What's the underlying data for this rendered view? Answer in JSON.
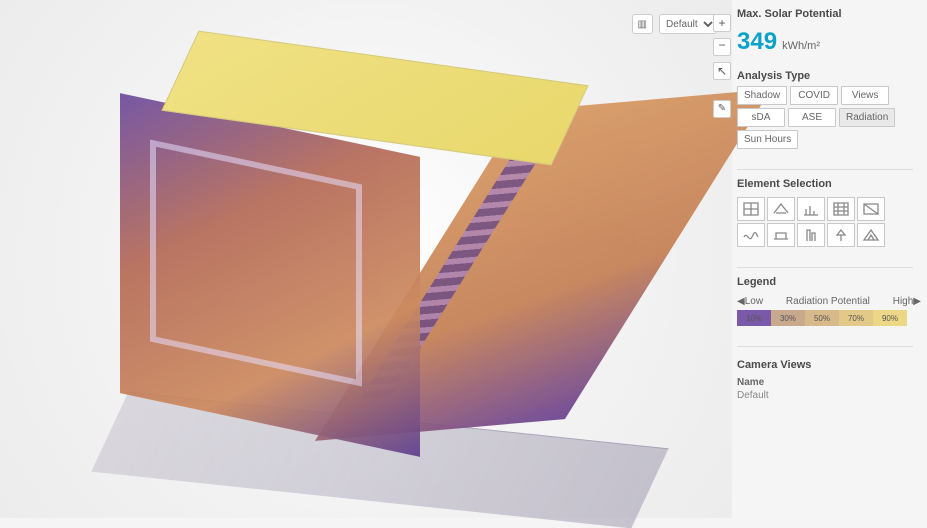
{
  "viewport": {
    "roof_color_start": "#f0e184",
    "roof_color_end": "#e8d86c",
    "front_gradient": [
      "#6c4c9e",
      "#b56b58",
      "#cc8a5f",
      "#5e3f90"
    ],
    "side_gradient": [
      "#d89a62",
      "#c47f55",
      "#6b4394"
    ]
  },
  "top_controls": {
    "view_mode_icon": "grid",
    "dropdown_selected": "Default",
    "dropdown_options": [
      "Default"
    ]
  },
  "tools": {
    "zoom_in": "+",
    "zoom_out": "−",
    "pointer": "↖",
    "edit": "✎"
  },
  "kpi": {
    "title": "Max. Solar Potential",
    "value": "349",
    "unit": "kWh/m²"
  },
  "analysis": {
    "title": "Analysis Type",
    "types": [
      {
        "label": "Shadow",
        "active": false
      },
      {
        "label": "COVID",
        "active": false
      },
      {
        "label": "Views",
        "active": false
      },
      {
        "label": "sDA",
        "active": false
      },
      {
        "label": "ASE",
        "active": false
      },
      {
        "label": "Radiation",
        "active": true
      },
      {
        "label": "Sun Hours",
        "active": false
      }
    ]
  },
  "elements": {
    "title": "Element Selection",
    "items": [
      "window",
      "roof",
      "chart",
      "grid",
      "panel",
      "wave",
      "floor",
      "column",
      "tree",
      "pyramid"
    ]
  },
  "legend": {
    "title": "Legend",
    "low_label": "Low",
    "mid_label": "Radiation Potential",
    "high_label": "High",
    "stops": [
      {
        "pct": "10%",
        "color": "#7a5aa8"
      },
      {
        "pct": "30%",
        "color": "#c9a98e"
      },
      {
        "pct": "50%",
        "color": "#d8b989"
      },
      {
        "pct": "70%",
        "color": "#e3c987"
      },
      {
        "pct": "90%",
        "color": "#ecd787"
      }
    ]
  },
  "camera": {
    "title": "Camera Views",
    "name_label": "Name",
    "view_name": "Default"
  }
}
